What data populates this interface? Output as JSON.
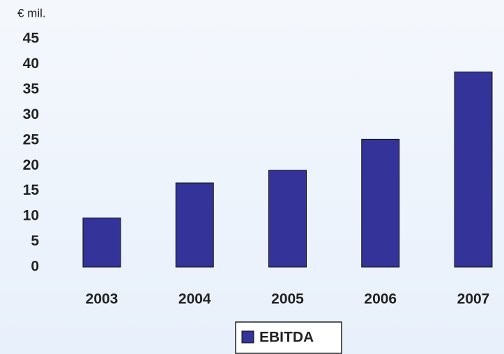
{
  "chart_data": {
    "type": "bar",
    "y_axis_label": "€ mil.",
    "categories": [
      "2003",
      "2004",
      "2005",
      "2006",
      "2007"
    ],
    "series": [
      {
        "name": "EBITDA",
        "color": "#333399",
        "values": [
          9.7,
          16.6,
          19.1,
          25.2,
          38.5
        ]
      }
    ],
    "ylim": [
      0,
      45
    ],
    "yticks": [
      0,
      5,
      10,
      15,
      20,
      25,
      30,
      35,
      40,
      45
    ],
    "grid": false,
    "legend": "bottom"
  }
}
